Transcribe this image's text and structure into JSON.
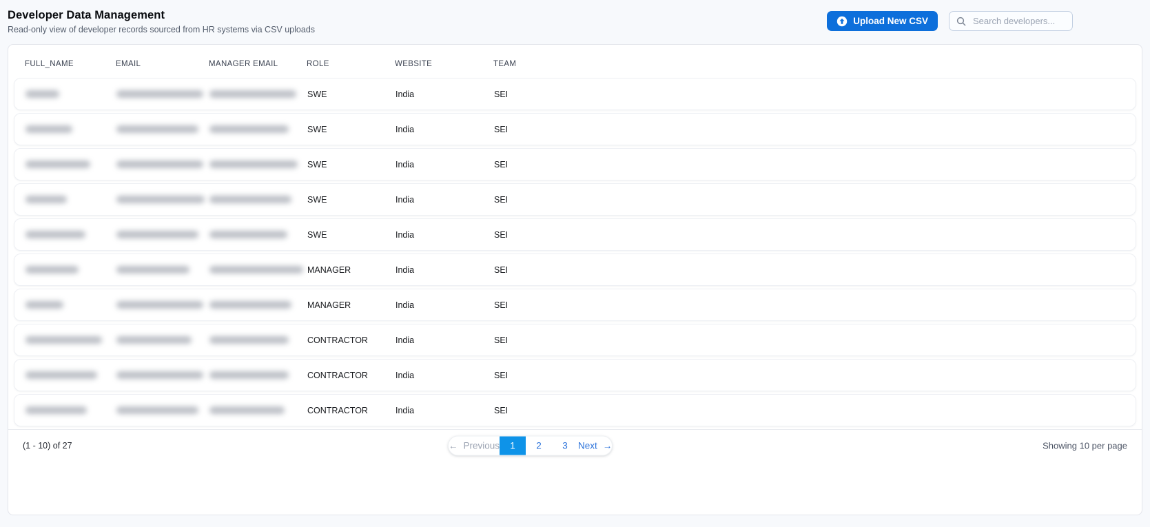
{
  "page": {
    "title": "Developer Data Management",
    "subtitle": "Read-only view of developer records sourced from HR systems via CSV uploads"
  },
  "toolbar": {
    "upload_label": "Upload New CSV",
    "upload_icon": "arrow-up-circle-icon",
    "search_icon": "magnifying-glass-icon",
    "search_placeholder": "Search developers...",
    "search_value": ""
  },
  "table": {
    "columns": [
      "FULL_NAME",
      "EMAIL",
      "MANAGER EMAIL",
      "ROLE",
      "WEBSITE",
      "TEAM"
    ],
    "redacted_note": "FULL_NAME, EMAIL and MANAGER EMAIL cell values are blurred/unreadable in the screenshot",
    "rows": [
      {
        "full_name": {
          "redacted": true,
          "blur_width": 49
        },
        "email": {
          "redacted": true,
          "blur_width": 126
        },
        "manager_email": {
          "redacted": true,
          "blur_width": 126
        },
        "role": "SWE",
        "website": "India",
        "team": "SEI"
      },
      {
        "full_name": {
          "redacted": true,
          "blur_width": 68
        },
        "email": {
          "redacted": true,
          "blur_width": 119
        },
        "manager_email": {
          "redacted": true,
          "blur_width": 115
        },
        "role": "SWE",
        "website": "India",
        "team": "SEI"
      },
      {
        "full_name": {
          "redacted": true,
          "blur_width": 94
        },
        "email": {
          "redacted": true,
          "blur_width": 126
        },
        "manager_email": {
          "redacted": true,
          "blur_width": 128
        },
        "role": "SWE",
        "website": "India",
        "team": "SEI"
      },
      {
        "full_name": {
          "redacted": true,
          "blur_width": 60
        },
        "email": {
          "redacted": true,
          "blur_width": 128
        },
        "manager_email": {
          "redacted": true,
          "blur_width": 119
        },
        "role": "SWE",
        "website": "India",
        "team": "SEI"
      },
      {
        "full_name": {
          "redacted": true,
          "blur_width": 87
        },
        "email": {
          "redacted": true,
          "blur_width": 119
        },
        "manager_email": {
          "redacted": true,
          "blur_width": 113
        },
        "role": "SWE",
        "website": "India",
        "team": "SEI"
      },
      {
        "full_name": {
          "redacted": true,
          "blur_width": 77
        },
        "email": {
          "redacted": true,
          "blur_width": 106
        },
        "manager_email": {
          "redacted": true,
          "blur_width": 136
        },
        "role": "MANAGER",
        "website": "India",
        "team": "SEI"
      },
      {
        "full_name": {
          "redacted": true,
          "blur_width": 55
        },
        "email": {
          "redacted": true,
          "blur_width": 126
        },
        "manager_email": {
          "redacted": true,
          "blur_width": 119
        },
        "role": "MANAGER",
        "website": "India",
        "team": "SEI"
      },
      {
        "full_name": {
          "redacted": true,
          "blur_width": 111
        },
        "email": {
          "redacted": true,
          "blur_width": 109
        },
        "manager_email": {
          "redacted": true,
          "blur_width": 115
        },
        "role": "CONTRACTOR",
        "website": "India",
        "team": "SEI"
      },
      {
        "full_name": {
          "redacted": true,
          "blur_width": 104
        },
        "email": {
          "redacted": true,
          "blur_width": 126
        },
        "manager_email": {
          "redacted": true,
          "blur_width": 115
        },
        "role": "CONTRACTOR",
        "website": "India",
        "team": "SEI"
      },
      {
        "full_name": {
          "redacted": true,
          "blur_width": 89
        },
        "email": {
          "redacted": true,
          "blur_width": 119
        },
        "manager_email": {
          "redacted": true,
          "blur_width": 109
        },
        "role": "CONTRACTOR",
        "website": "India",
        "team": "SEI"
      }
    ]
  },
  "pagination": {
    "range_label": "(1 - 10) of 27",
    "previous_label": "Previous",
    "prev_arrow": "←",
    "pages": [
      {
        "label": "1",
        "active": true
      },
      {
        "label": "2",
        "active": false
      },
      {
        "label": "3",
        "active": false
      }
    ],
    "next_label": "Next",
    "next_arrow": "→",
    "per_page_label": "Showing 10 per page"
  },
  "colors": {
    "primary_button": "#0d6fdb",
    "active_page": "#0e93e8",
    "link_blue": "#2b72da",
    "page_background": "#f7f9fc",
    "card_border": "#e3e5eb"
  }
}
